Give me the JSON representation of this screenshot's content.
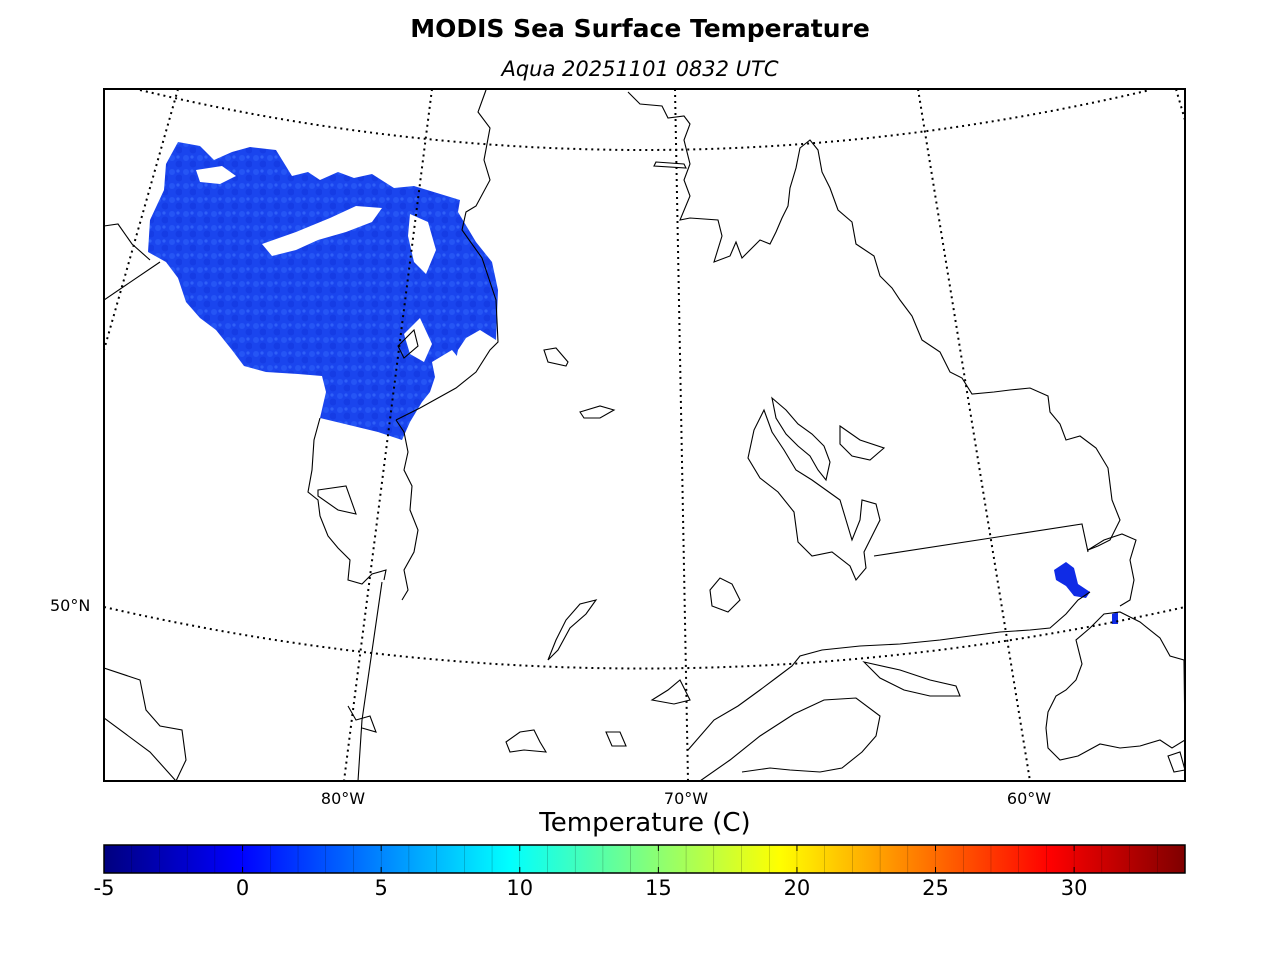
{
  "title": "MODIS Sea Surface Temperature",
  "subtitle": "Aqua 20251101 0832 UTC",
  "map": {
    "latitude_labels": [
      {
        "id": "lat-50",
        "text": "50°N"
      }
    ],
    "longitude_labels": [
      {
        "id": "lon-80",
        "text": "80°W"
      },
      {
        "id": "lon-70",
        "text": "70°W"
      },
      {
        "id": "lon-60",
        "text": "60°W"
      }
    ],
    "graticule_style": "dotted",
    "data_color_hint": "#1e4cf0"
  },
  "colorbar": {
    "label": "Temperature (C)",
    "min": -5,
    "max": 34,
    "ticks": [
      "-5",
      "0",
      "5",
      "10",
      "15",
      "20",
      "25",
      "30"
    ],
    "colormap": "jet",
    "jet_stops": [
      "#00007f",
      "#0000ff",
      "#007fff",
      "#00ffff",
      "#7fff7f",
      "#ffff00",
      "#ff7f00",
      "#ff0000",
      "#7f0000"
    ]
  }
}
